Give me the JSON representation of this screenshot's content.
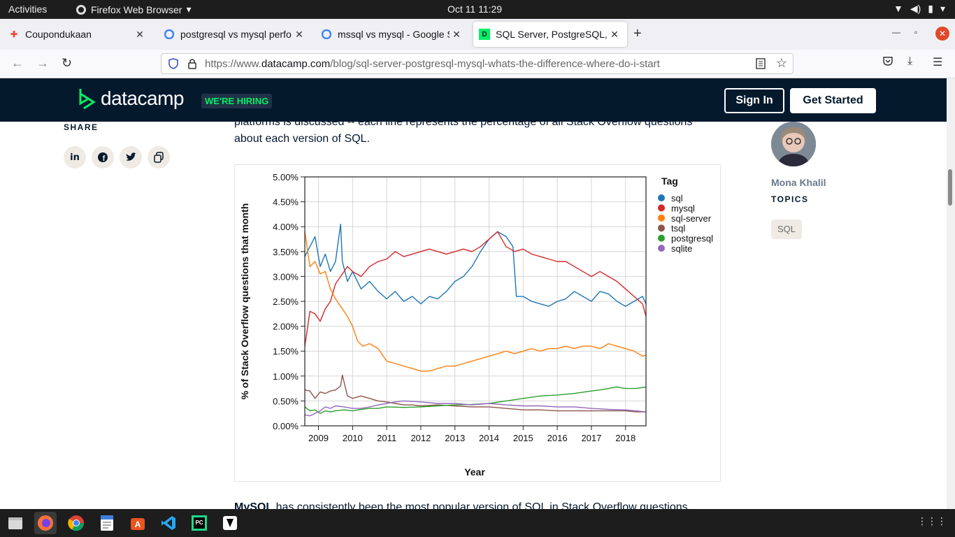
{
  "system": {
    "activities": "Activities",
    "app_name": "Firefox Web Browser",
    "clock": "Oct 11  11:29"
  },
  "tabs": [
    {
      "title": "Coupondukaan",
      "active": false
    },
    {
      "title": "postgresql vs mysql perfo",
      "active": false
    },
    {
      "title": "mssql vs mysql - Google S",
      "active": false
    },
    {
      "title": "SQL Server, PostgreSQL, M",
      "active": true
    }
  ],
  "url": {
    "prefix": "https://www.",
    "domain": "datacamp.com",
    "path": "/blog/sql-server-postgresql-mysql-whats-the-difference-where-do-i-start"
  },
  "site": {
    "logo_text": "datacamp",
    "hiring_badge": "WE'RE HIRING",
    "signin_label": "Sign In",
    "get_started_label": "Get Started"
  },
  "article": {
    "share_label": "SHARE",
    "intro_line1": "platforms is discussed -- each line represents the percentage of all Stack Overflow questions",
    "intro_line2": "about each version of SQL.",
    "after_text": "has consistently been the most popular version of SQL in Stack Overflow questions",
    "after_text_bold": "MySQL"
  },
  "author": {
    "name": "Mona Khalil",
    "topics_label": "TOPICS",
    "topic": "SQL"
  },
  "chart_data": {
    "type": "line",
    "xlabel": "Year",
    "ylabel": "% of Stack Overflow questions that month",
    "x_ticks": [
      "2009",
      "2010",
      "2011",
      "2012",
      "2013",
      "2014",
      "2015",
      "2016",
      "2017",
      "2018"
    ],
    "y_ticks": [
      "0.00%",
      "0.50%",
      "1.00%",
      "1.50%",
      "2.00%",
      "2.50%",
      "3.00%",
      "3.50%",
      "4.00%",
      "4.50%",
      "5.00%"
    ],
    "xlim": [
      2008.6,
      2018.6
    ],
    "ylim": [
      0,
      5
    ],
    "legend_title": "Tag",
    "series": [
      {
        "name": "sql",
        "color": "#1f77b4",
        "x": [
          2008.6,
          2008.75,
          2008.9,
          2009.05,
          2009.2,
          2009.35,
          2009.5,
          2009.65,
          2009.7,
          2009.85,
          2010.0,
          2010.25,
          2010.5,
          2010.75,
          2011.0,
          2011.25,
          2011.5,
          2011.75,
          2012.0,
          2012.25,
          2012.5,
          2012.75,
          2013.0,
          2013.25,
          2013.5,
          2013.75,
          2014.0,
          2014.25,
          2014.5,
          2014.7,
          2014.8,
          2015.0,
          2015.25,
          2015.5,
          2015.75,
          2016.0,
          2016.25,
          2016.5,
          2016.75,
          2017.0,
          2017.25,
          2017.5,
          2017.75,
          2018.0,
          2018.25,
          2018.5,
          2018.6
        ],
        "y": [
          3.4,
          3.6,
          3.8,
          3.2,
          3.45,
          3.1,
          3.3,
          4.05,
          3.3,
          2.9,
          3.1,
          2.75,
          2.9,
          2.7,
          2.55,
          2.7,
          2.5,
          2.6,
          2.45,
          2.6,
          2.55,
          2.7,
          2.9,
          3.0,
          3.2,
          3.5,
          3.75,
          3.9,
          3.8,
          3.6,
          2.6,
          2.6,
          2.5,
          2.45,
          2.4,
          2.5,
          2.55,
          2.7,
          2.6,
          2.5,
          2.7,
          2.65,
          2.5,
          2.4,
          2.5,
          2.6,
          2.45
        ]
      },
      {
        "name": "mysql",
        "color": "#d62728",
        "x": [
          2008.6,
          2008.75,
          2008.9,
          2009.05,
          2009.2,
          2009.35,
          2009.5,
          2009.65,
          2009.85,
          2010.0,
          2010.25,
          2010.5,
          2010.75,
          2011.0,
          2011.25,
          2011.5,
          2011.75,
          2012.0,
          2012.25,
          2012.5,
          2012.75,
          2013.0,
          2013.25,
          2013.5,
          2013.75,
          2014.0,
          2014.25,
          2014.5,
          2014.75,
          2015.0,
          2015.25,
          2015.5,
          2015.75,
          2016.0,
          2016.25,
          2016.5,
          2016.75,
          2017.0,
          2017.25,
          2017.5,
          2017.75,
          2018.0,
          2018.25,
          2018.5,
          2018.6
        ],
        "y": [
          1.6,
          2.3,
          2.25,
          2.1,
          2.35,
          2.5,
          2.85,
          3.0,
          3.2,
          3.1,
          3.0,
          3.2,
          3.3,
          3.35,
          3.5,
          3.4,
          3.45,
          3.5,
          3.55,
          3.5,
          3.45,
          3.5,
          3.55,
          3.5,
          3.6,
          3.75,
          3.9,
          3.6,
          3.5,
          3.55,
          3.45,
          3.4,
          3.35,
          3.3,
          3.3,
          3.2,
          3.1,
          3.0,
          3.1,
          3.0,
          2.9,
          2.75,
          2.6,
          2.45,
          2.2
        ]
      },
      {
        "name": "sql-server",
        "color": "#ff7f0e",
        "x": [
          2008.6,
          2008.75,
          2008.9,
          2009.05,
          2009.2,
          2009.35,
          2009.5,
          2009.65,
          2009.85,
          2010.0,
          2010.15,
          2010.3,
          2010.5,
          2010.75,
          2011.0,
          2011.25,
          2011.5,
          2011.75,
          2012.0,
          2012.25,
          2012.5,
          2012.75,
          2013.0,
          2013.25,
          2013.5,
          2013.75,
          2014.0,
          2014.25,
          2014.5,
          2014.75,
          2015.0,
          2015.25,
          2015.5,
          2015.75,
          2016.0,
          2016.25,
          2016.5,
          2016.75,
          2017.0,
          2017.25,
          2017.5,
          2017.75,
          2018.0,
          2018.25,
          2018.5,
          2018.6
        ],
        "y": [
          3.9,
          3.2,
          3.3,
          3.05,
          3.1,
          2.75,
          2.55,
          2.4,
          2.2,
          2.0,
          1.7,
          1.6,
          1.65,
          1.55,
          1.3,
          1.25,
          1.2,
          1.15,
          1.1,
          1.1,
          1.15,
          1.2,
          1.2,
          1.25,
          1.3,
          1.35,
          1.4,
          1.45,
          1.5,
          1.45,
          1.5,
          1.55,
          1.5,
          1.55,
          1.55,
          1.6,
          1.55,
          1.6,
          1.6,
          1.55,
          1.65,
          1.6,
          1.55,
          1.5,
          1.4,
          1.42
        ]
      },
      {
        "name": "tsql",
        "color": "#8c564b",
        "x": [
          2008.6,
          2008.75,
          2008.9,
          2009.05,
          2009.2,
          2009.35,
          2009.5,
          2009.65,
          2009.7,
          2009.85,
          2010.0,
          2010.25,
          2010.5,
          2010.75,
          2011.0,
          2011.25,
          2011.5,
          2011.75,
          2012.0,
          2012.5,
          2013.0,
          2013.5,
          2014.0,
          2014.5,
          2015.0,
          2015.5,
          2016.0,
          2016.5,
          2017.0,
          2017.5,
          2018.0,
          2018.3,
          2018.6
        ],
        "y": [
          0.72,
          0.7,
          0.55,
          0.68,
          0.65,
          0.7,
          0.72,
          0.8,
          1.02,
          0.6,
          0.55,
          0.6,
          0.55,
          0.5,
          0.48,
          0.45,
          0.42,
          0.42,
          0.4,
          0.42,
          0.4,
          0.38,
          0.38,
          0.35,
          0.32,
          0.32,
          0.3,
          0.3,
          0.3,
          0.3,
          0.3,
          0.28,
          0.28
        ]
      },
      {
        "name": "postgresql",
        "color": "#2ca02c",
        "x": [
          2008.6,
          2008.75,
          2008.9,
          2009.05,
          2009.2,
          2009.35,
          2009.5,
          2009.75,
          2010.0,
          2010.25,
          2010.5,
          2010.75,
          2011.0,
          2011.5,
          2012.0,
          2012.5,
          2013.0,
          2013.5,
          2014.0,
          2014.5,
          2015.0,
          2015.5,
          2016.0,
          2016.5,
          2017.0,
          2017.25,
          2017.5,
          2017.75,
          2018.0,
          2018.3,
          2018.6
        ],
        "y": [
          0.38,
          0.3,
          0.32,
          0.25,
          0.3,
          0.28,
          0.3,
          0.32,
          0.3,
          0.33,
          0.35,
          0.35,
          0.38,
          0.37,
          0.38,
          0.4,
          0.42,
          0.43,
          0.45,
          0.5,
          0.55,
          0.6,
          0.62,
          0.65,
          0.7,
          0.72,
          0.75,
          0.78,
          0.75,
          0.75,
          0.78
        ]
      },
      {
        "name": "sqlite",
        "color": "#9467bd",
        "x": [
          2008.6,
          2008.75,
          2008.9,
          2009.05,
          2009.2,
          2009.35,
          2009.5,
          2009.75,
          2010.0,
          2010.25,
          2010.5,
          2010.75,
          2011.0,
          2011.25,
          2011.5,
          2012.0,
          2012.5,
          2013.0,
          2013.5,
          2014.0,
          2014.5,
          2015.0,
          2015.5,
          2016.0,
          2016.5,
          2017.0,
          2017.5,
          2018.0,
          2018.3,
          2018.6
        ],
        "y": [
          0.22,
          0.2,
          0.25,
          0.3,
          0.38,
          0.35,
          0.4,
          0.38,
          0.35,
          0.35,
          0.38,
          0.42,
          0.45,
          0.48,
          0.5,
          0.48,
          0.45,
          0.45,
          0.42,
          0.45,
          0.42,
          0.4,
          0.4,
          0.38,
          0.38,
          0.35,
          0.33,
          0.32,
          0.3,
          0.28
        ]
      }
    ]
  }
}
